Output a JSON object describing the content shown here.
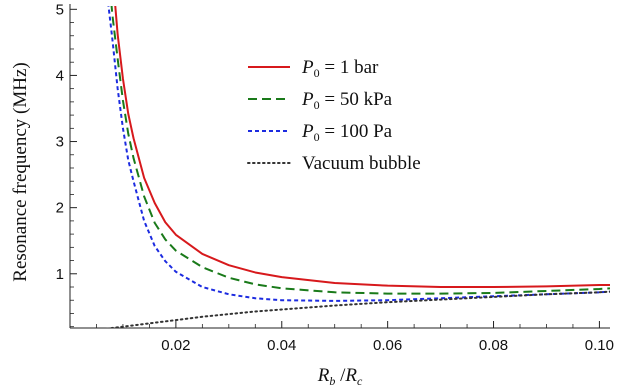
{
  "chart_data": {
    "type": "line",
    "title": "",
    "xlabel": {
      "main": "R",
      "sub1": "b",
      "sep": " /",
      "main2": "R",
      "sub2": "c"
    },
    "ylabel": "Resonance frequency (MHz)",
    "xlim": [
      0,
      0.102
    ],
    "ylim": [
      0.18,
      5.05
    ],
    "x_ticks": [
      0.02,
      0.04,
      0.06,
      0.08,
      0.1
    ],
    "x_tick_labels": [
      "0.02",
      "0.04",
      "0.06",
      "0.08",
      "0.10"
    ],
    "y_ticks": [
      1,
      2,
      3,
      4,
      5
    ],
    "y_tick_labels": [
      "1",
      "2",
      "3",
      "4",
      "5"
    ],
    "grid": false,
    "legend_position": "top-right",
    "series": [
      {
        "name": "P0 = 1 bar",
        "legend": {
          "sym": "P",
          "sub": "0",
          "rest": " = 1 bar"
        },
        "color": "#d7191c",
        "dash": "solid",
        "x": [
          0.0085,
          0.009,
          0.01,
          0.011,
          0.012,
          0.014,
          0.016,
          0.018,
          0.02,
          0.025,
          0.03,
          0.035,
          0.04,
          0.05,
          0.06,
          0.07,
          0.08,
          0.09,
          0.1,
          0.102
        ],
        "y": [
          5.1,
          4.62,
          3.95,
          3.42,
          3.05,
          2.45,
          2.07,
          1.78,
          1.59,
          1.3,
          1.13,
          1.02,
          0.95,
          0.86,
          0.82,
          0.8,
          0.8,
          0.81,
          0.83,
          0.83
        ]
      },
      {
        "name": "P0 = 50 kPa",
        "legend": {
          "sym": "P",
          "sub": "0",
          "rest": " = 50 kPa"
        },
        "color": "#1a7a1a",
        "dash": "long",
        "x": [
          0.0078,
          0.008,
          0.009,
          0.01,
          0.011,
          0.012,
          0.014,
          0.016,
          0.018,
          0.02,
          0.025,
          0.03,
          0.035,
          0.04,
          0.05,
          0.06,
          0.07,
          0.08,
          0.09,
          0.1,
          0.102
        ],
        "y": [
          5.1,
          4.92,
          4.25,
          3.62,
          3.12,
          2.75,
          2.17,
          1.77,
          1.52,
          1.35,
          1.1,
          0.94,
          0.84,
          0.78,
          0.72,
          0.7,
          0.7,
          0.71,
          0.74,
          0.77,
          0.78
        ]
      },
      {
        "name": "P0 = 100 Pa",
        "legend": {
          "sym": "P",
          "sub": "0",
          "rest": " = 100 Pa"
        },
        "color": "#1c2be0",
        "dash": "short",
        "x": [
          0.0072,
          0.008,
          0.009,
          0.01,
          0.011,
          0.012,
          0.014,
          0.016,
          0.018,
          0.02,
          0.025,
          0.03,
          0.035,
          0.04,
          0.05,
          0.06,
          0.07,
          0.08,
          0.09,
          0.1,
          0.102
        ],
        "y": [
          5.1,
          4.55,
          3.8,
          3.2,
          2.72,
          2.4,
          1.8,
          1.42,
          1.19,
          1.03,
          0.8,
          0.69,
          0.63,
          0.6,
          0.59,
          0.6,
          0.63,
          0.66,
          0.69,
          0.72,
          0.73
        ]
      },
      {
        "name": "Vacuum bubble",
        "legend": {
          "sym": "",
          "sub": "",
          "rest": "Vacuum bubble"
        },
        "color": "#333333",
        "dash": "dot",
        "x": [
          0.005,
          0.01,
          0.015,
          0.02,
          0.025,
          0.03,
          0.035,
          0.04,
          0.045,
          0.05,
          0.06,
          0.07,
          0.08,
          0.09,
          0.1,
          0.102
        ],
        "y": [
          0.15,
          0.2,
          0.25,
          0.3,
          0.35,
          0.39,
          0.43,
          0.46,
          0.49,
          0.52,
          0.57,
          0.61,
          0.65,
          0.69,
          0.72,
          0.73
        ]
      }
    ]
  }
}
